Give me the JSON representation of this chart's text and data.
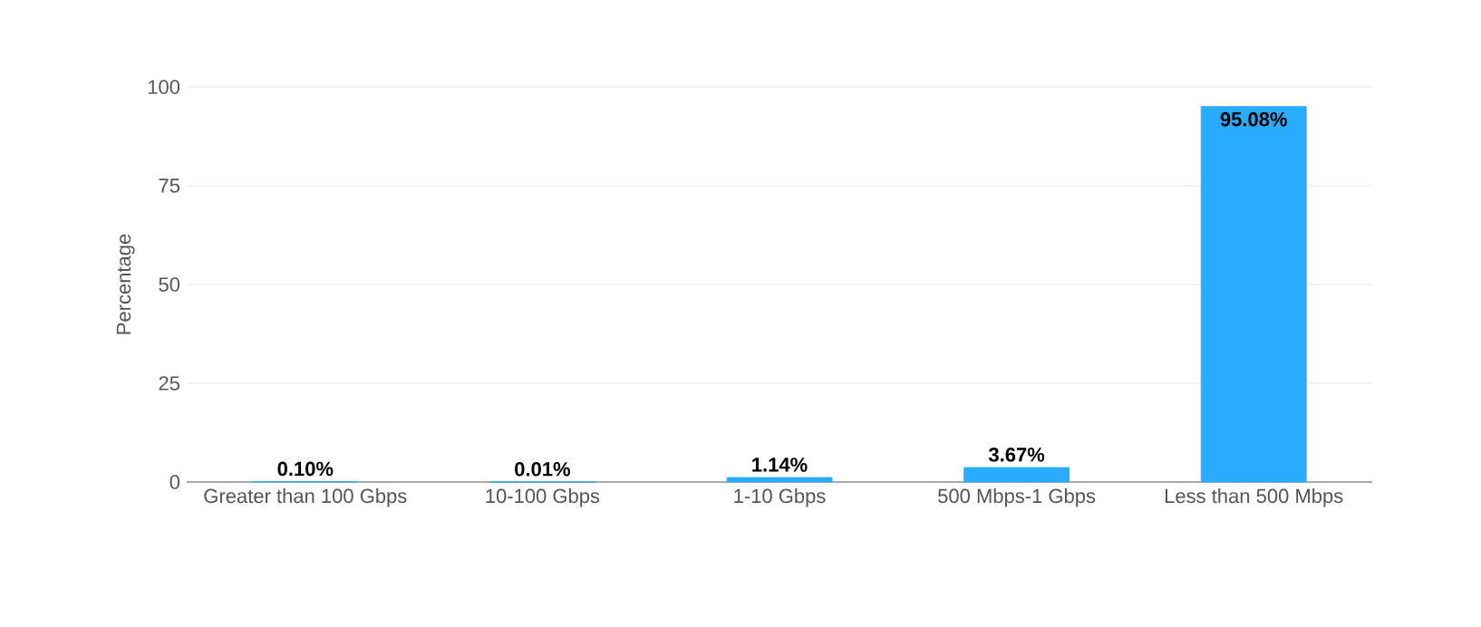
{
  "chart_data": {
    "type": "bar",
    "categories": [
      "Greater than 100 Gbps",
      "10-100 Gbps",
      "1-10 Gbps",
      "500 Mbps-1 Gbps",
      "Less than 500 Mbps"
    ],
    "values": [
      0.1,
      0.01,
      1.14,
      3.67,
      95.08
    ],
    "value_labels": [
      "0.10%",
      "0.01%",
      "1.14%",
      "3.67%",
      "95.08%"
    ],
    "color": "#29abff",
    "ylabel": "Percentage",
    "ylim": [
      0,
      100
    ],
    "yticks": [
      0,
      25,
      50,
      75,
      100
    ],
    "grid": "y"
  }
}
